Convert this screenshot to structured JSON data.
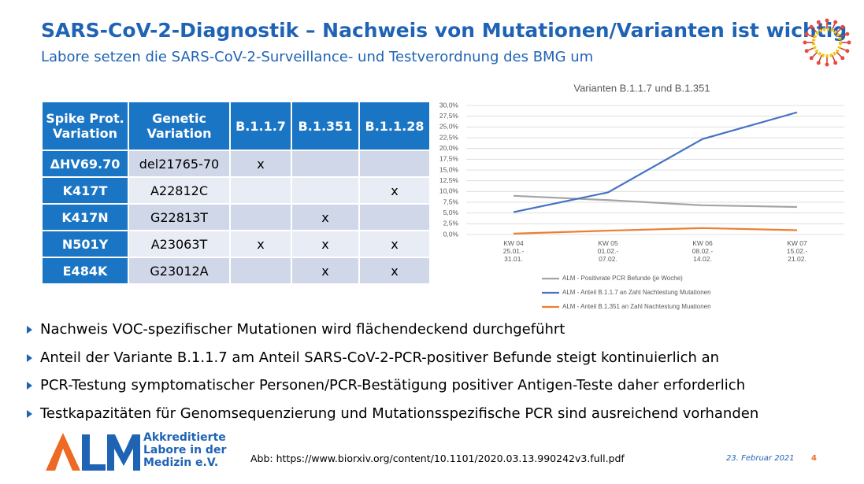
{
  "header": {
    "title": "SARS-CoV-2-Diagnostik – Nachweis von Mutationen/Varianten ist wichtig",
    "subtitle": "Labore setzen die SARS-CoV-2-Surveillance- und Testverordnung des BMG um"
  },
  "table": {
    "headers": [
      "Spike Prot.\nVariation",
      "Genetic\nVariation",
      "B.1.1.7",
      "B.1.351",
      "B.1.1.28"
    ],
    "rows": [
      [
        "ΔHV69.70",
        "del21765-70",
        "x",
        "",
        ""
      ],
      [
        "K417T",
        "A22812C",
        "",
        "",
        "x"
      ],
      [
        "K417N",
        "G22813T",
        "",
        "x",
        ""
      ],
      [
        "N501Y",
        "A23063T",
        "x",
        "x",
        "x"
      ],
      [
        "E484K",
        "G23012A",
        "",
        "x",
        "x"
      ]
    ]
  },
  "chart_data": {
    "type": "line",
    "title": "Varianten B.1.1.7 und B.1.351",
    "categories": [
      "KW 04\n25.01.-\n31.01.",
      "KW 05\n01.02.-\n07.02.",
      "KW 06\n08.02.-\n14.02.",
      "KW 07\n15.02.-\n21.02."
    ],
    "series": [
      {
        "name": "ALM - Positivrate PCR Befunde (je Woche)",
        "color": "#a5a5a5",
        "values": [
          9.0,
          8.0,
          6.8,
          6.4
        ]
      },
      {
        "name": "ALM - Anteil B.1.1.7 an Zahl Nachtestung Mutationen",
        "color": "#4472c4",
        "values": [
          5.2,
          9.8,
          22.2,
          28.4
        ]
      },
      {
        "name": "ALM - Anteil B.1.351 an Zahl Nachtestung Muationen",
        "color": "#ed7d31",
        "values": [
          0.2,
          0.9,
          1.5,
          1.0
        ]
      }
    ],
    "ylim": [
      0,
      30
    ],
    "yticks": [
      {
        "value": 0,
        "label": "0,0%"
      },
      {
        "value": 2.5,
        "label": "2,5%"
      },
      {
        "value": 5,
        "label": "5,0%"
      },
      {
        "value": 7.5,
        "label": "7,5%"
      },
      {
        "value": 10,
        "label": "10,0%"
      },
      {
        "value": 12.5,
        "label": "12,5%"
      },
      {
        "value": 15,
        "label": "15,0%"
      },
      {
        "value": 17.5,
        "label": "17,5%"
      },
      {
        "value": 20,
        "label": "20,0%"
      },
      {
        "value": 22.5,
        "label": "22,5%"
      },
      {
        "value": 25,
        "label": "25,0%"
      },
      {
        "value": 27.5,
        "label": "27,5%"
      },
      {
        "value": 30,
        "label": "30,0%"
      }
    ],
    "grid": true,
    "legend": "bottom"
  },
  "bullets": [
    "Nachweis VOC-spezifischer Mutationen wird flächendeckend durchgeführt",
    "Anteil der Variante B.1.1.7 am Anteil SARS-CoV-2-PCR-positiver Befunde steigt kontinuierlich an",
    "PCR-Testung symptomatischer Personen/PCR-Bestätigung positiver Antigen-Teste daher erforderlich",
    "Testkapazitäten für Genomsequenzierung und Mutationsspezifische PCR sind ausreichend vorhanden"
  ],
  "footer": {
    "logo_lines": [
      "Akkreditierte",
      "Labore in der",
      "Medizin e.V."
    ],
    "source": "Abb: https://www.biorxiv.org/content/10.1101/2020.03.13.990242v3.full.pdf",
    "date": "23. Februar 2021",
    "page": "4"
  }
}
